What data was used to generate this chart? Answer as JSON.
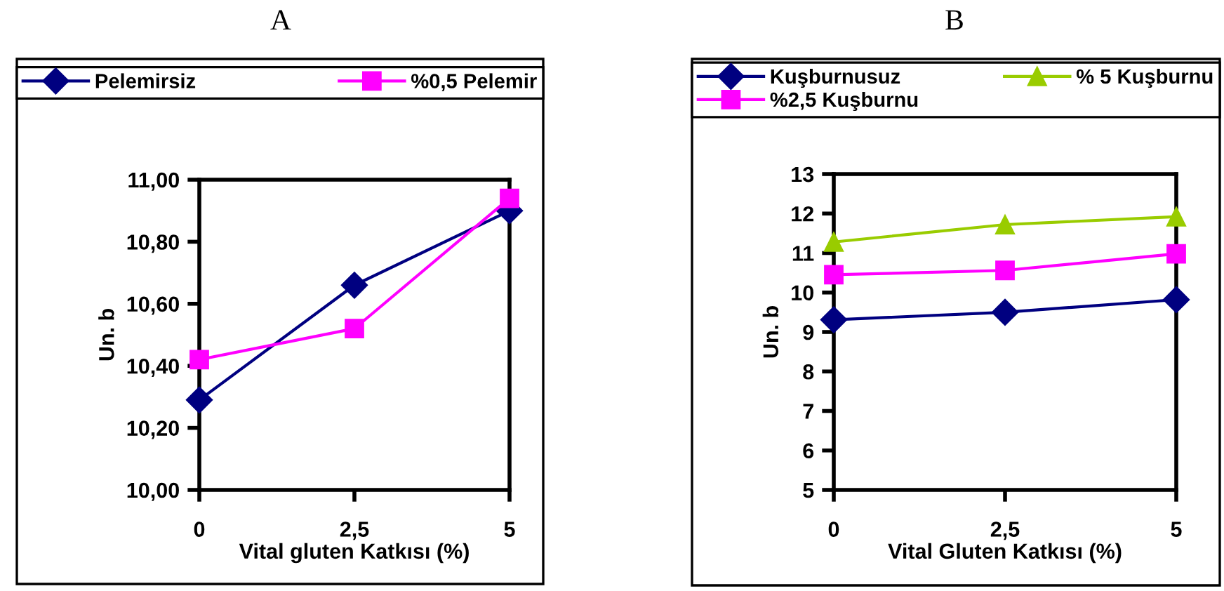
{
  "chart_data": [
    {
      "type": "line",
      "title": "A",
      "xlabel": "Vital gluten Katkısı (%)",
      "ylabel": "Un. b",
      "x": [
        0,
        2.5,
        5
      ],
      "xlim": [
        0,
        5
      ],
      "xticks": [
        0,
        {
          "value": 2.5,
          "label": "2,5"
        },
        5
      ],
      "ylim": [
        10.0,
        11.0
      ],
      "yticks": [
        {
          "value": 10.0,
          "label": "10,00"
        },
        {
          "value": 10.2,
          "label": "10,20"
        },
        {
          "value": 10.4,
          "label": "10,40"
        },
        {
          "value": 10.6,
          "label": "10,60"
        },
        {
          "value": 10.8,
          "label": "10,80"
        },
        {
          "value": 11.0,
          "label": "11,00"
        }
      ],
      "grid": false,
      "legend": "top",
      "series": [
        {
          "name": "Pelemirsiz",
          "color": "#000080",
          "marker": "diamond",
          "values": [
            10.29,
            10.66,
            10.9
          ]
        },
        {
          "name": "%0,5 Pelemir",
          "color": "#ff00ff",
          "marker": "square",
          "values": [
            10.42,
            10.52,
            10.94
          ]
        }
      ]
    },
    {
      "type": "line",
      "title": "B",
      "xlabel": "Vital Gluten Katkısı (%)",
      "ylabel": "Un. b",
      "x": [
        0,
        2.5,
        5
      ],
      "xlim": [
        0,
        5
      ],
      "xticks": [
        0,
        {
          "value": 2.5,
          "label": "2,5"
        },
        5
      ],
      "ylim": [
        5,
        13
      ],
      "yticks": [
        5,
        6,
        7,
        8,
        9,
        10,
        11,
        12,
        13
      ],
      "grid": false,
      "legend": "top",
      "series": [
        {
          "name": "Kuşburnusuz",
          "color": "#000080",
          "marker": "diamond",
          "values": [
            9.31,
            9.5,
            9.82
          ]
        },
        {
          "name": "%2,5 Kuşburnu",
          "color": "#ff00ff",
          "marker": "square",
          "values": [
            10.45,
            10.56,
            10.98
          ]
        },
        {
          "name": "% 5 Kuşburnu",
          "color": "#99cc00",
          "marker": "triangle",
          "values": [
            11.28,
            11.72,
            11.92
          ]
        }
      ]
    }
  ]
}
